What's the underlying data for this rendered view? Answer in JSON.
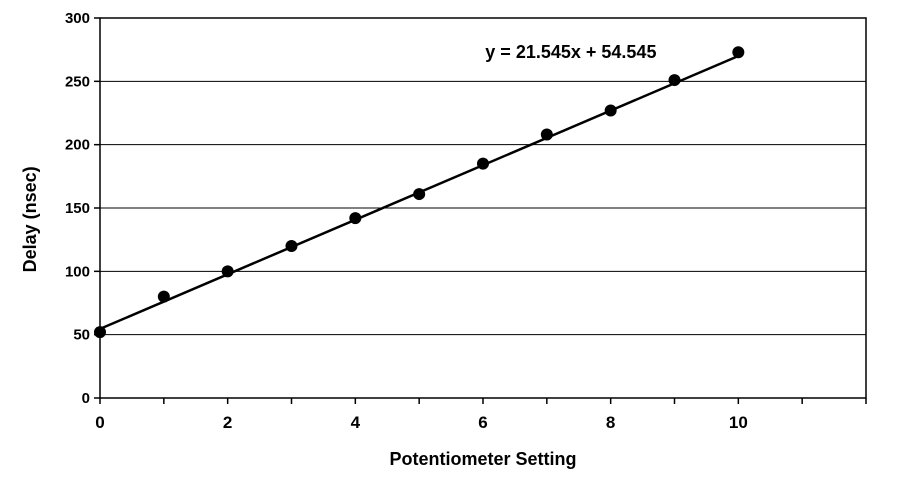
{
  "chart_data": {
    "type": "scatter",
    "title": "",
    "xlabel": "Potentiometer Setting",
    "ylabel": "Delay (nsec)",
    "xlim": [
      0,
      12
    ],
    "ylim": [
      0,
      300
    ],
    "x_ticks": [
      "0",
      "2",
      "4",
      "6",
      "8",
      "10"
    ],
    "y_ticks": [
      "0",
      "50",
      "100",
      "150",
      "200",
      "250",
      "300"
    ],
    "grid": "horizontal",
    "series": [
      {
        "x": [
          0,
          1,
          2,
          3,
          4,
          5,
          6,
          7,
          8,
          9,
          10
        ],
        "y": [
          52,
          80,
          100,
          120,
          142,
          161,
          185,
          208,
          227,
          251,
          273
        ]
      }
    ],
    "trendline": {
      "type": "linear",
      "slope": 21.545,
      "intercept": 54.545,
      "label": "y = 21.545x + 54.545"
    },
    "colors": {
      "points": "#000000",
      "line": "#000000",
      "grid": "#000000"
    }
  }
}
